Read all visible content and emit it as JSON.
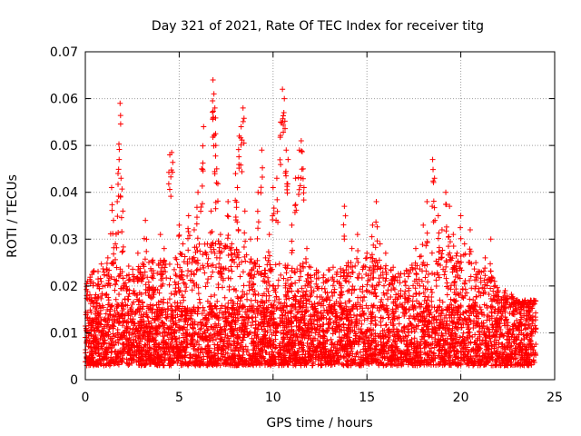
{
  "chart_data": {
    "type": "scatter",
    "title": "Day 321 of 2021, Rate Of TEC Index for receiver titg",
    "xlabel": "GPS time / hours",
    "ylabel": "ROTI / TECUs",
    "xlim": [
      0,
      25
    ],
    "ylim": [
      0,
      0.07
    ],
    "xticks": [
      0,
      5,
      10,
      15,
      20,
      25
    ],
    "xtick_labels": [
      "0",
      "5",
      "10",
      "15",
      "20",
      "25"
    ],
    "yticks": [
      0,
      0.01,
      0.02,
      0.03,
      0.04,
      0.05,
      0.06,
      0.07
    ],
    "ytick_labels": [
      "0",
      "0.01",
      "0.02",
      "0.03",
      "0.04",
      "0.05",
      "0.06",
      "0.07"
    ],
    "grid": true,
    "marker": "+",
    "series": [
      {
        "name": "ROTI",
        "color": "#ff0000",
        "points": [
          [
            0.1,
            0.0085
          ],
          [
            0.2,
            0.012
          ],
          [
            0.3,
            0.021
          ],
          [
            0.4,
            0.023
          ],
          [
            0.5,
            0.007
          ],
          [
            0.7,
            0.014
          ],
          [
            0.9,
            0.018
          ],
          [
            1.0,
            0.011
          ],
          [
            1.2,
            0.026
          ],
          [
            1.3,
            0.016
          ],
          [
            1.4,
            0.041
          ],
          [
            1.5,
            0.034
          ],
          [
            1.6,
            0.029
          ],
          [
            1.7,
            0.038
          ],
          [
            1.8,
            0.047
          ],
          [
            1.85,
            0.059
          ],
          [
            1.9,
            0.043
          ],
          [
            2.0,
            0.036
          ],
          [
            2.2,
            0.019
          ],
          [
            2.4,
            0.013
          ],
          [
            2.6,
            0.022
          ],
          [
            2.8,
            0.027
          ],
          [
            3.0,
            0.021
          ],
          [
            3.2,
            0.034
          ],
          [
            3.4,
            0.018
          ],
          [
            3.6,
            0.025
          ],
          [
            3.8,
            0.016
          ],
          [
            4.0,
            0.031
          ],
          [
            4.2,
            0.028
          ],
          [
            4.5,
            0.048
          ],
          [
            4.6,
            0.0485
          ],
          [
            4.8,
            0.026
          ],
          [
            5.0,
            0.033
          ],
          [
            5.2,
            0.029
          ],
          [
            5.5,
            0.035
          ],
          [
            5.8,
            0.032
          ],
          [
            6.0,
            0.04
          ],
          [
            6.2,
            0.045
          ],
          [
            6.3,
            0.054
          ],
          [
            6.5,
            0.029
          ],
          [
            6.7,
            0.036
          ],
          [
            6.8,
            0.064
          ],
          [
            6.85,
            0.061
          ],
          [
            6.9,
            0.058
          ],
          [
            6.95,
            0.05
          ],
          [
            7.0,
            0.045
          ],
          [
            7.2,
            0.031
          ],
          [
            7.4,
            0.028
          ],
          [
            7.6,
            0.038
          ],
          [
            7.8,
            0.029
          ],
          [
            8.0,
            0.044
          ],
          [
            8.1,
            0.041
          ],
          [
            8.2,
            0.052
          ],
          [
            8.3,
            0.054
          ],
          [
            8.4,
            0.058
          ],
          [
            8.5,
            0.036
          ],
          [
            8.8,
            0.03
          ],
          [
            9.0,
            0.025
          ],
          [
            9.2,
            0.04
          ],
          [
            9.4,
            0.049
          ],
          [
            9.6,
            0.026
          ],
          [
            9.8,
            0.031
          ],
          [
            10.0,
            0.041
          ],
          [
            10.2,
            0.043
          ],
          [
            10.4,
            0.055
          ],
          [
            10.5,
            0.062
          ],
          [
            10.6,
            0.06
          ],
          [
            10.7,
            0.049
          ],
          [
            10.8,
            0.047
          ],
          [
            11.0,
            0.033
          ],
          [
            11.2,
            0.043
          ],
          [
            11.4,
            0.049
          ],
          [
            11.5,
            0.051
          ],
          [
            11.6,
            0.045
          ],
          [
            11.8,
            0.028
          ],
          [
            12.0,
            0.024
          ],
          [
            12.4,
            0.023
          ],
          [
            12.8,
            0.021
          ],
          [
            13.2,
            0.024
          ],
          [
            13.6,
            0.022
          ],
          [
            13.8,
            0.037
          ],
          [
            14.0,
            0.025
          ],
          [
            14.2,
            0.028
          ],
          [
            14.5,
            0.031
          ],
          [
            14.8,
            0.024
          ],
          [
            15.0,
            0.027
          ],
          [
            15.3,
            0.033
          ],
          [
            15.5,
            0.038
          ],
          [
            15.7,
            0.029
          ],
          [
            16.0,
            0.027
          ],
          [
            16.4,
            0.024
          ],
          [
            16.8,
            0.019
          ],
          [
            17.2,
            0.022
          ],
          [
            17.6,
            0.028
          ],
          [
            18.0,
            0.033
          ],
          [
            18.2,
            0.038
          ],
          [
            18.5,
            0.047
          ],
          [
            18.6,
            0.043
          ],
          [
            18.8,
            0.035
          ],
          [
            19.0,
            0.032
          ],
          [
            19.2,
            0.04
          ],
          [
            19.4,
            0.037
          ],
          [
            19.6,
            0.031
          ],
          [
            19.8,
            0.027
          ],
          [
            20.0,
            0.035
          ],
          [
            20.2,
            0.029
          ],
          [
            20.5,
            0.032
          ],
          [
            20.8,
            0.025
          ],
          [
            21.0,
            0.023
          ],
          [
            21.3,
            0.026
          ],
          [
            21.6,
            0.03
          ],
          [
            21.8,
            0.021
          ],
          [
            22.0,
            0.019
          ],
          [
            22.4,
            0.017
          ],
          [
            22.8,
            0.014
          ],
          [
            23.2,
            0.016
          ],
          [
            23.5,
            0.013
          ],
          [
            23.8,
            0.012
          ],
          [
            24.0,
            0.011
          ]
        ]
      }
    ],
    "dense_band": {
      "x_range": [
        0,
        24
      ],
      "typical_min": 0.003,
      "typical_max": 0.016,
      "envelope": [
        [
          0,
          0.017
        ],
        [
          1,
          0.022
        ],
        [
          2,
          0.02
        ],
        [
          3,
          0.021
        ],
        [
          4,
          0.022
        ],
        [
          5,
          0.023
        ],
        [
          6,
          0.025
        ],
        [
          7,
          0.026
        ],
        [
          8,
          0.024
        ],
        [
          9,
          0.022
        ],
        [
          10,
          0.021
        ],
        [
          11,
          0.022
        ],
        [
          12,
          0.02
        ],
        [
          13,
          0.02
        ],
        [
          14,
          0.021
        ],
        [
          15,
          0.023
        ],
        [
          16,
          0.02
        ],
        [
          17,
          0.019
        ],
        [
          18,
          0.023
        ],
        [
          19,
          0.024
        ],
        [
          20,
          0.022
        ],
        [
          21,
          0.02
        ],
        [
          22,
          0.017
        ],
        [
          23,
          0.013
        ],
        [
          24,
          0.013
        ]
      ]
    }
  }
}
